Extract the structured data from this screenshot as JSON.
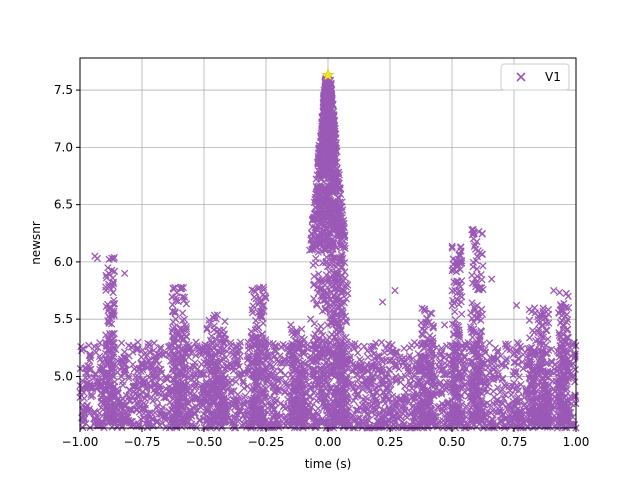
{
  "chart_data": {
    "type": "scatter",
    "title": "",
    "xlabel": "time (s)",
    "ylabel": "newsnr",
    "xlim": [
      -1.0,
      1.0
    ],
    "ylim": [
      4.55,
      7.78
    ],
    "grid": true,
    "legend_position": "top-right",
    "x_ticks": [
      {
        "value": -1.0,
        "label": "−1.00"
      },
      {
        "value": -0.75,
        "label": "−0.75"
      },
      {
        "value": -0.5,
        "label": "−0.50"
      },
      {
        "value": -0.25,
        "label": "−0.25"
      },
      {
        "value": 0.0,
        "label": "0.00"
      },
      {
        "value": 0.25,
        "label": "0.25"
      },
      {
        "value": 0.5,
        "label": "0.50"
      },
      {
        "value": 0.75,
        "label": "0.75"
      },
      {
        "value": 1.0,
        "label": "1.00"
      }
    ],
    "y_ticks": [
      {
        "value": 5.0,
        "label": "5.0"
      },
      {
        "value": 5.5,
        "label": "5.5"
      },
      {
        "value": 6.0,
        "label": "6.0"
      },
      {
        "value": 6.5,
        "label": "6.5"
      },
      {
        "value": 7.0,
        "label": "7.0"
      },
      {
        "value": 7.5,
        "label": "7.5"
      }
    ],
    "series": [
      {
        "name": "V1",
        "color": "#9b59b6",
        "marker": "x",
        "background_band": {
          "x_min": -1.0,
          "x_max": 1.0,
          "y_min": 4.55,
          "y_max": 5.3
        },
        "dense_regions": [
          {
            "x_center": -0.6,
            "x_width": 0.06,
            "y_min": 4.6,
            "y_max": 5.85
          },
          {
            "x_center": -0.88,
            "x_width": 0.04,
            "y_min": 4.6,
            "y_max": 6.05
          },
          {
            "x_center": -0.45,
            "x_width": 0.08,
            "y_min": 4.6,
            "y_max": 5.55
          },
          {
            "x_center": -0.28,
            "x_width": 0.06,
            "y_min": 4.6,
            "y_max": 5.78
          },
          {
            "x_center": -0.12,
            "x_width": 0.06,
            "y_min": 4.6,
            "y_max": 5.45
          },
          {
            "x_center": 0.05,
            "x_width": 0.06,
            "y_min": 4.6,
            "y_max": 6.05
          },
          {
            "x_center": 0.4,
            "x_width": 0.05,
            "y_min": 4.6,
            "y_max": 5.6
          },
          {
            "x_center": 0.52,
            "x_width": 0.04,
            "y_min": 4.6,
            "y_max": 6.15
          },
          {
            "x_center": 0.6,
            "x_width": 0.05,
            "y_min": 4.6,
            "y_max": 6.3
          },
          {
            "x_center": 0.85,
            "x_width": 0.08,
            "y_min": 4.6,
            "y_max": 5.6
          },
          {
            "x_center": 0.95,
            "x_width": 0.04,
            "y_min": 4.6,
            "y_max": 5.75
          }
        ],
        "peak_cluster": {
          "x_center": 0.0,
          "x_half_width": 0.075,
          "y_min": 6.1,
          "y_max": 7.6,
          "tip_y": 7.6
        }
      }
    ],
    "highlight_point": {
      "x": 0.0,
      "y": 7.63,
      "color": "#f5e61a",
      "marker": "star"
    },
    "outliers": [
      {
        "x": -0.94,
        "y": 6.05
      },
      {
        "x": -0.93,
        "y": 6.03
      },
      {
        "x": -0.82,
        "y": 5.9
      },
      {
        "x": -0.26,
        "y": 5.78
      },
      {
        "x": -0.07,
        "y": 5.5
      },
      {
        "x": 0.47,
        "y": 5.45
      },
      {
        "x": 0.58,
        "y": 6.28
      },
      {
        "x": 0.59,
        "y": 6.25
      },
      {
        "x": 0.66,
        "y": 5.85
      },
      {
        "x": 0.76,
        "y": 5.62
      },
      {
        "x": 0.91,
        "y": 5.75
      },
      {
        "x": 0.97,
        "y": 5.6
      },
      {
        "x": -0.15,
        "y": 5.45
      },
      {
        "x": 0.22,
        "y": 5.65
      },
      {
        "x": 0.27,
        "y": 5.75
      }
    ]
  }
}
